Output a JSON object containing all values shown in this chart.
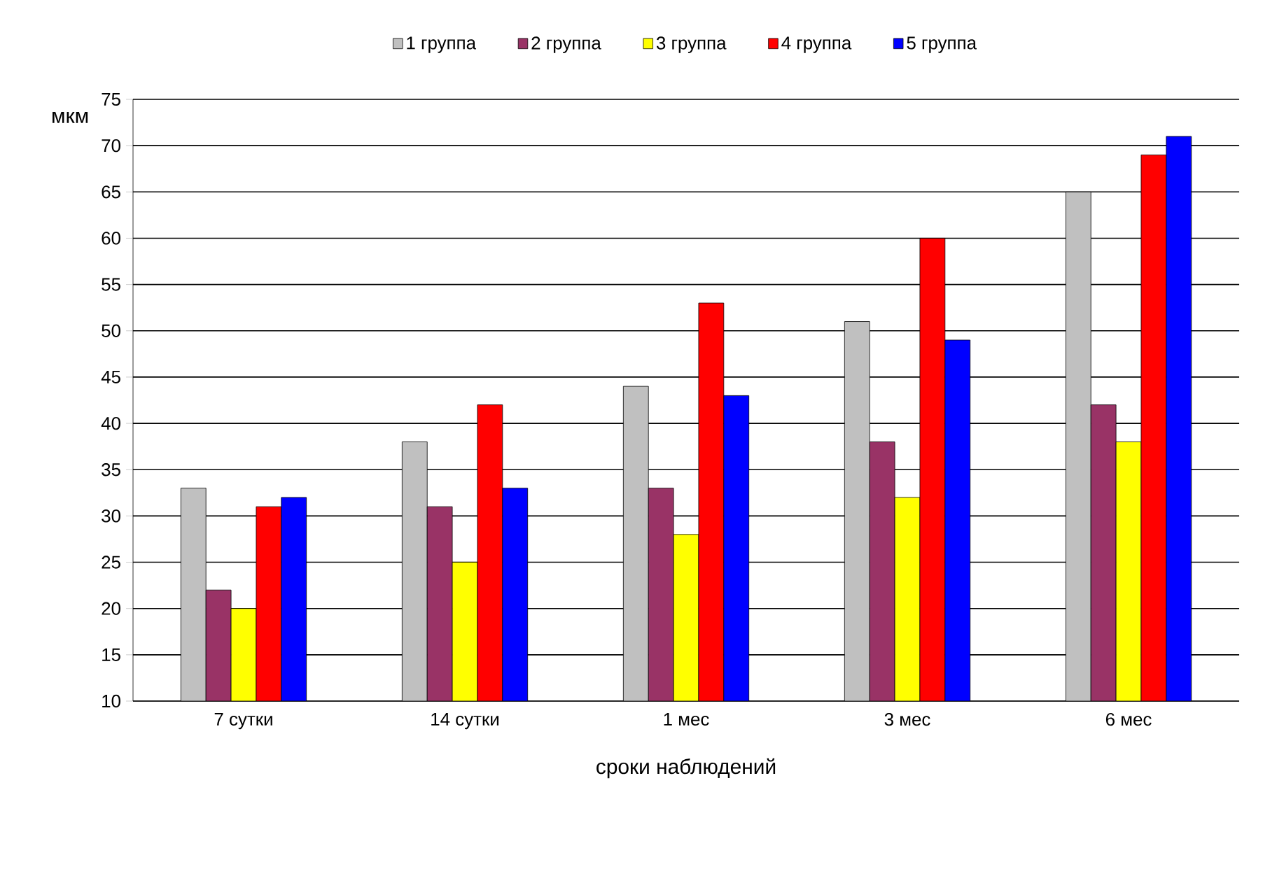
{
  "chart_data": {
    "type": "bar",
    "xlabel": "сроки наблюдений",
    "ylabel": "мкм",
    "categories": [
      "7 сутки",
      "14 сутки",
      "1 мес",
      "3 мес",
      "6 мес"
    ],
    "series": [
      {
        "name": "1 группа",
        "color": "#c0c0c0",
        "values": [
          33,
          38,
          44,
          51,
          65
        ]
      },
      {
        "name": "2 группа",
        "color": "#993366",
        "values": [
          22,
          31,
          33,
          38,
          42
        ]
      },
      {
        "name": "3 группа",
        "color": "#ffff00",
        "values": [
          20,
          25,
          28,
          32,
          38
        ]
      },
      {
        "name": "4 группа",
        "color": "#ff0000",
        "values": [
          31,
          42,
          53,
          60,
          69
        ]
      },
      {
        "name": "5 группа",
        "color": "#0000ff",
        "values": [
          32,
          33,
          43,
          49,
          71
        ]
      }
    ],
    "ylim": [
      10,
      75
    ],
    "yticks": [
      10,
      15,
      20,
      25,
      30,
      35,
      40,
      45,
      50,
      55,
      60,
      65,
      70,
      75
    ],
    "grid": "y",
    "legend": "top"
  }
}
